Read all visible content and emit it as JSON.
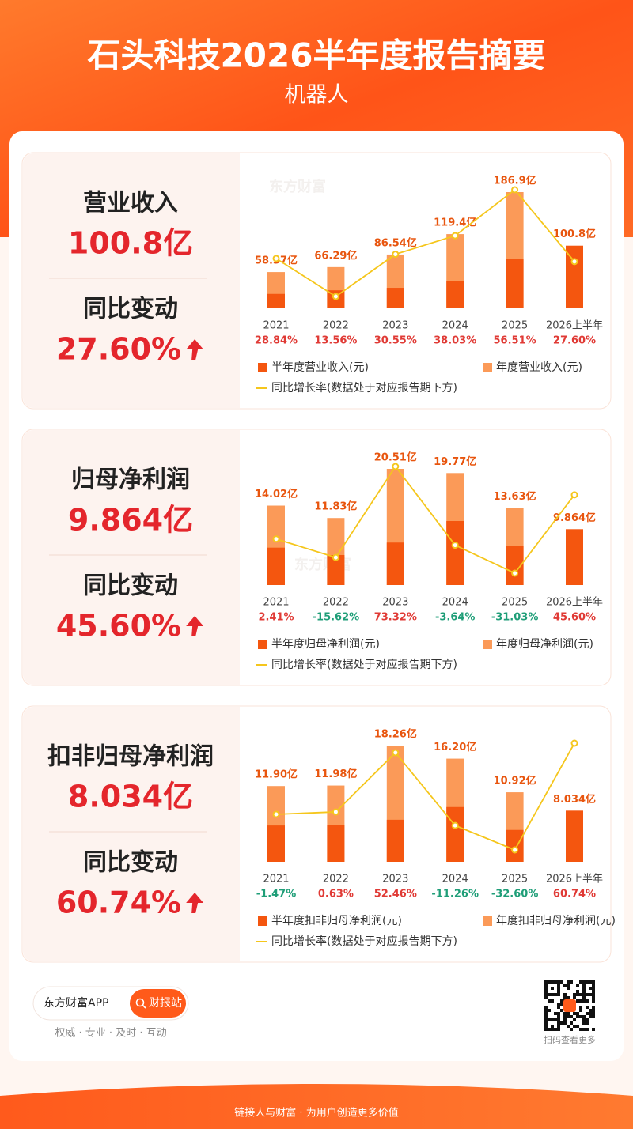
{
  "header": {
    "title": "石头科技2026半年度报告摘要",
    "subtitle": "机器人"
  },
  "watermark": "东方财富",
  "panels": [
    {
      "metric": "营业收入",
      "value": "100.8亿",
      "change_label": "同比变动",
      "change": "27.60%"
    },
    {
      "metric": "归母净利润",
      "value": "9.864亿",
      "change_label": "同比变动",
      "change": "45.60%"
    },
    {
      "metric": "扣非归母净利润",
      "value": "8.034亿",
      "change_label": "同比变动",
      "change": "60.74%"
    }
  ],
  "chart_data": [
    {
      "type": "bar",
      "categories": [
        "2021",
        "2022",
        "2023",
        "2024",
        "2025",
        "2026上半年"
      ],
      "positive_color": "#e03a35",
      "negative_color": "#1f9e78",
      "series": [
        {
          "name": "半年度营业收入(元)",
          "color": "#f4560f",
          "values": [
            23.2,
            29.0,
            33.0,
            44.0,
            79.0,
            100.8
          ],
          "value_labels": [
            null,
            null,
            null,
            null,
            null,
            "100.8亿"
          ]
        },
        {
          "name": "年度营业收入(元)",
          "color": "#fb9a58",
          "values": [
            58.37,
            66.29,
            86.54,
            119.4,
            186.9,
            null
          ],
          "value_labels": [
            "58.37亿",
            "66.29亿",
            "86.54亿",
            "119.4亿",
            "186.9亿",
            null
          ]
        },
        {
          "name": "同比增长率(数据处于对应报告期下方)",
          "type": "line",
          "color": "#f5c61c",
          "values": [
            28.84,
            13.56,
            30.55,
            38.03,
            56.51,
            27.6
          ],
          "value_labels": [
            "28.84%",
            "13.56%",
            "30.55%",
            "38.03%",
            "56.51%",
            "27.60%"
          ]
        }
      ]
    },
    {
      "type": "bar",
      "categories": [
        "2021",
        "2022",
        "2023",
        "2024",
        "2025",
        "2026上半年"
      ],
      "positive_color": "#e03a35",
      "negative_color": "#1f9e78",
      "series": [
        {
          "name": "半年度归母净利润(元)",
          "color": "#f4560f",
          "values": [
            6.6,
            5.3,
            7.5,
            11.3,
            6.9,
            9.864
          ],
          "value_labels": [
            null,
            null,
            null,
            null,
            null,
            "9.864亿"
          ]
        },
        {
          "name": "年度归母净利润(元)",
          "color": "#fb9a58",
          "values": [
            14.02,
            11.83,
            20.51,
            19.77,
            13.63,
            null
          ],
          "value_labels": [
            "14.02亿",
            "11.83亿",
            "20.51亿",
            "19.77亿",
            "13.63亿",
            null
          ]
        },
        {
          "name": "同比增长率(数据处于对应报告期下方)",
          "type": "line",
          "color": "#f5c61c",
          "values": [
            2.41,
            -15.62,
            73.32,
            -3.64,
            -31.03,
            45.6
          ],
          "value_labels": [
            "2.41%",
            "-15.62%",
            "73.32%",
            "-3.64%",
            "-31.03%",
            "45.60%"
          ]
        }
      ]
    },
    {
      "type": "bar",
      "categories": [
        "2021",
        "2022",
        "2023",
        "2024",
        "2025",
        "2026上半年"
      ],
      "positive_color": "#e03a35",
      "negative_color": "#1f9e78",
      "series": [
        {
          "name": "半年度扣非归母净利润(元)",
          "color": "#f4560f",
          "values": [
            5.7,
            5.8,
            6.6,
            8.6,
            5.0,
            8.034
          ],
          "value_labels": [
            null,
            null,
            null,
            null,
            null,
            "8.034亿"
          ]
        },
        {
          "name": "年度扣非归母净利润(元)",
          "color": "#fb9a58",
          "values": [
            11.9,
            11.98,
            18.26,
            16.2,
            10.92,
            null
          ],
          "value_labels": [
            "11.90亿",
            "11.98亿",
            "18.26亿",
            "16.20亿",
            "10.92亿",
            null
          ]
        },
        {
          "name": "同比增长率(数据处于对应报告期下方)",
          "type": "line",
          "color": "#f5c61c",
          "values": [
            -1.47,
            0.63,
            52.46,
            -11.26,
            -32.6,
            60.74
          ],
          "value_labels": [
            "-1.47%",
            "0.63%",
            "52.46%",
            "-11.26%",
            "-32.60%",
            "60.74%"
          ]
        }
      ]
    }
  ],
  "footer": {
    "app": "东方财富APP",
    "button": "财报站",
    "slogan": "权威 · 专业 · 及时 · 互动",
    "qr_caption": "扫码查看更多",
    "tagline": "链接人与财富 · 为用户创造更多价值"
  }
}
